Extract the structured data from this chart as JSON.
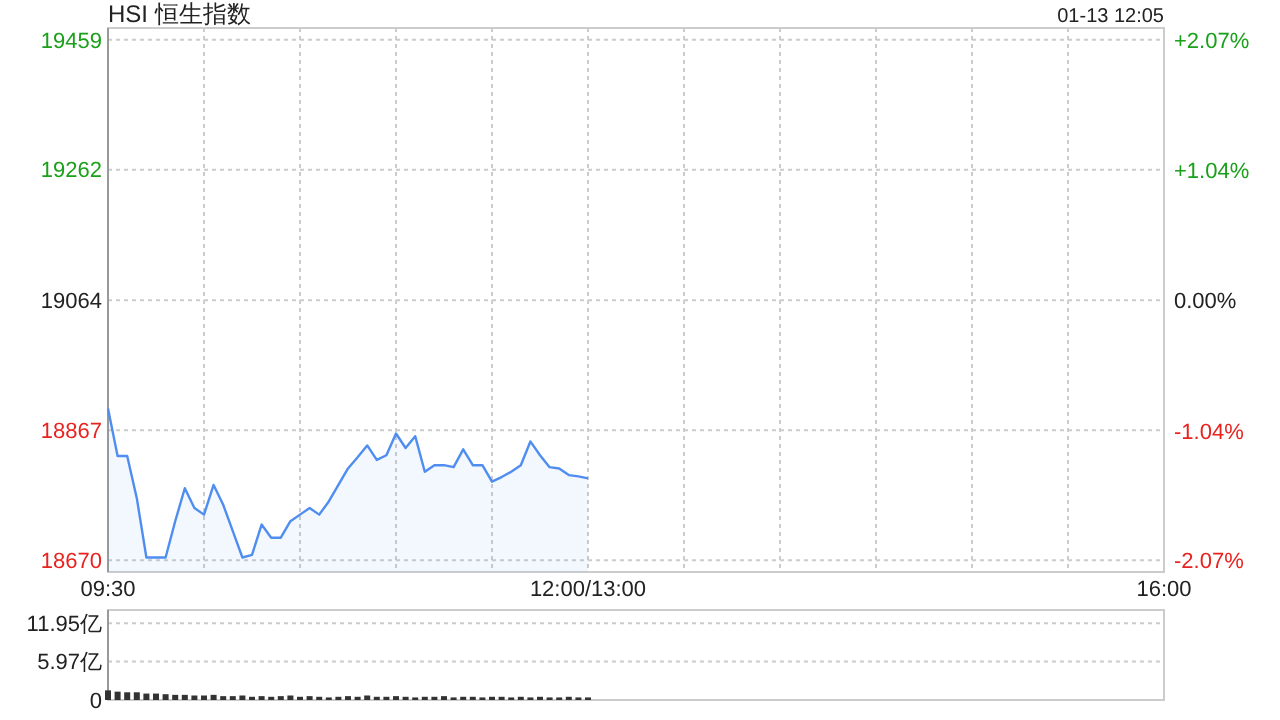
{
  "chart_data": [
    {
      "type": "area",
      "title": "HSI 恒生指数",
      "annotations": [
        "01-13 12:05"
      ],
      "categories": [
        "09:30",
        null,
        null,
        null,
        null,
        null,
        null,
        null,
        null,
        null,
        null,
        null,
        null,
        null,
        null,
        null,
        null,
        null,
        null,
        null,
        null,
        null,
        null,
        null,
        null,
        null,
        null,
        null,
        null,
        null,
        null,
        null,
        null,
        null,
        null,
        null,
        null,
        null,
        null,
        null,
        null,
        null,
        null,
        null,
        null,
        null,
        null,
        null,
        null,
        null,
        "12:00/13:00",
        null,
        null,
        null,
        null,
        null,
        null,
        null,
        null,
        null,
        null,
        null,
        null,
        null,
        null,
        null,
        null,
        null,
        null,
        null,
        null,
        null,
        null,
        null,
        null,
        null,
        null,
        null,
        null,
        null,
        null,
        null,
        null,
        null,
        null,
        null,
        null,
        null,
        null,
        null,
        null,
        null,
        null,
        null,
        null,
        null,
        null,
        null,
        null,
        null,
        null,
        null,
        null,
        null,
        null,
        null,
        null,
        null,
        null,
        null,
        "16:00"
      ],
      "series": [
        {
          "color": "#4f8ef0",
          "values": [
            18900,
            18828,
            18828,
            18764,
            18674,
            18674,
            18674,
            18729,
            18779,
            18749,
            18739,
            18784,
            18754,
            18714,
            18674,
            18678,
            18724,
            18704,
            18704,
            18729,
            18739,
            18749,
            18739,
            18759,
            18784,
            18809,
            18826,
            18844,
            18822,
            18829,
            18862,
            18840,
            18858,
            18804,
            18814,
            18814,
            18811,
            18838,
            18814,
            18814,
            18789,
            18796,
            18804,
            18814,
            18850,
            18829,
            18811,
            18809,
            18799,
            18797,
            18794,
            null,
            null,
            null,
            null,
            null,
            null,
            null,
            null,
            null,
            null,
            null,
            null,
            null,
            null,
            null,
            null,
            null,
            null,
            null,
            null,
            null,
            null,
            null,
            null,
            null,
            null,
            null,
            null,
            null,
            null,
            null,
            null,
            null,
            null,
            null,
            null,
            null,
            null,
            null,
            null,
            null,
            null,
            null,
            null,
            null,
            null,
            null,
            null,
            null,
            null,
            null,
            null,
            null,
            null,
            null,
            null,
            null,
            null,
            null,
            null
          ]
        }
      ],
      "ylim": [
        18652,
        19477
      ],
      "yticks": [
        18670,
        18867,
        19064,
        19262,
        19459
      ],
      "y2lim": [
        -2.16,
        2.17
      ],
      "y2ticks": [
        {
          "value": -2.07,
          "label": "-2.07%"
        },
        {
          "value": -1.04,
          "label": "-1.04%"
        },
        {
          "value": 0,
          "label": "0.00%"
        },
        {
          "value": 1.04,
          "label": "+1.04%"
        },
        {
          "value": 2.07,
          "label": "+2.07%"
        }
      ],
      "grid": true
    },
    {
      "type": "bar",
      "categories": [
        null,
        null,
        null,
        null,
        null,
        null,
        null,
        null,
        null,
        null,
        null,
        null,
        null,
        null,
        null,
        null,
        null,
        null,
        null,
        null,
        null,
        null,
        null,
        null,
        null,
        null,
        null,
        null,
        null,
        null,
        null,
        null,
        null,
        null,
        null,
        null,
        null,
        null,
        null,
        null,
        null,
        null,
        null,
        null,
        null,
        null,
        null,
        null,
        null,
        null,
        null,
        null,
        null,
        null,
        null,
        null,
        null,
        null,
        null,
        null,
        null,
        null,
        null,
        null,
        null,
        null,
        null,
        null,
        null,
        null,
        null,
        null,
        null,
        null,
        null,
        null,
        null,
        null,
        null,
        null,
        null,
        null,
        null,
        null,
        null,
        null,
        null,
        null,
        null,
        null,
        null,
        null,
        null,
        null,
        null,
        null,
        null,
        null,
        null,
        null,
        null,
        null,
        null,
        null,
        null,
        null,
        null,
        null,
        null,
        null,
        null
      ],
      "series": [
        {
          "color": "#333333",
          "values": [
            1.5,
            1.3,
            1.2,
            1.2,
            1,
            1,
            0.9,
            0.8,
            0.8,
            0.7,
            0.7,
            0.8,
            0.6,
            0.6,
            0.7,
            0.5,
            0.6,
            0.5,
            0.6,
            0.7,
            0.5,
            0.6,
            0.5,
            0.4,
            0.5,
            0.6,
            0.5,
            0.7,
            0.5,
            0.5,
            0.6,
            0.5,
            0.4,
            0.5,
            0.5,
            0.6,
            0.4,
            0.5,
            0.5,
            0.4,
            0.5,
            0.5,
            0.4,
            0.5,
            0.4,
            0.5,
            0.4,
            0.4,
            0.5,
            0.4,
            0.4,
            null,
            null,
            null,
            null,
            null,
            null,
            null,
            null,
            null,
            null,
            null,
            null,
            null,
            null,
            null,
            null,
            null,
            null,
            null,
            null,
            null,
            null,
            null,
            null,
            null,
            null,
            null,
            null,
            null,
            null,
            null,
            null,
            null,
            null,
            null,
            null,
            null,
            null,
            null,
            null,
            null,
            null,
            null,
            null,
            null,
            null,
            null,
            null,
            null,
            null,
            null,
            null,
            null,
            null,
            null,
            null,
            null,
            null,
            null,
            null
          ]
        }
      ],
      "ylim": [
        0,
        14
      ],
      "yticks": [
        0,
        {
          "value": 5.97,
          "label": "5.97亿"
        },
        {
          "value": 11.95,
          "label": "11.95亿"
        }
      ],
      "grid": "y",
      "tick_labels": "y"
    }
  ]
}
